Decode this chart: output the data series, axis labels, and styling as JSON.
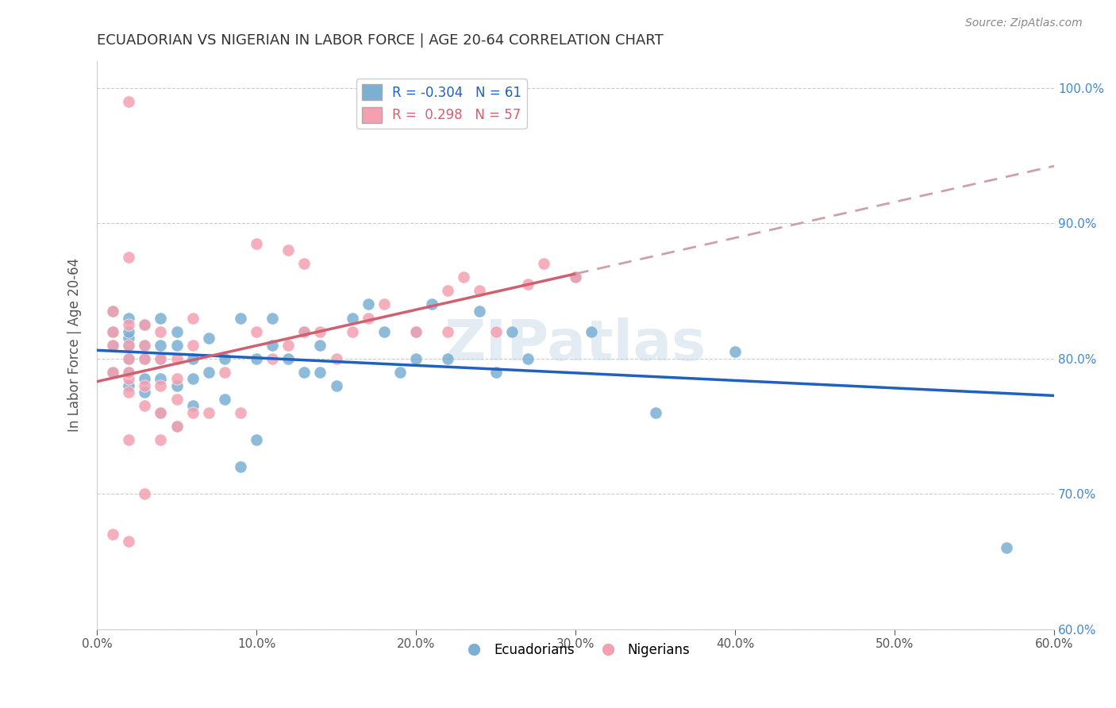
{
  "title": "ECUADORIAN VS NIGERIAN IN LABOR FORCE | AGE 20-64 CORRELATION CHART",
  "source": "Source: ZipAtlas.com",
  "xlabel_bottom": "",
  "ylabel": "In Labor Force | Age 20-64",
  "xlim": [
    0.0,
    0.6
  ],
  "ylim": [
    0.6,
    1.02
  ],
  "xticks": [
    0.0,
    0.1,
    0.2,
    0.3,
    0.4,
    0.5,
    0.6
  ],
  "yticks": [
    0.6,
    0.7,
    0.8,
    0.9,
    1.0
  ],
  "ytick_labels": [
    "60.0%",
    "70.0%",
    "80.0%",
    "90.0%",
    "100.0%"
  ],
  "xtick_labels": [
    "0.0%",
    "10.0%",
    "20.0%",
    "30.0%",
    "40.0%",
    "50.0%",
    "60.0%"
  ],
  "legend_entries": [
    {
      "label": "R = -0.304   N = 61",
      "color": "#7bafd4"
    },
    {
      "label": "R =  0.298   N = 57",
      "color": "#f4a0b0"
    }
  ],
  "ecuadorian_color": "#7bafd4",
  "nigerian_color": "#f4a0b0",
  "trend_blue_color": "#2060c0",
  "trend_pink_color": "#d06070",
  "trend_pink_dash_color": "#d0a0a8",
  "background_color": "#ffffff",
  "watermark": "ZIPatlas",
  "watermark_color": "#c8d8e8",
  "R_ecu": -0.304,
  "N_ecu": 61,
  "R_nig": 0.298,
  "N_nig": 57,
  "ecuadorian_x": [
    0.01,
    0.01,
    0.01,
    0.01,
    0.02,
    0.02,
    0.02,
    0.02,
    0.02,
    0.02,
    0.02,
    0.03,
    0.03,
    0.03,
    0.03,
    0.03,
    0.04,
    0.04,
    0.04,
    0.04,
    0.04,
    0.05,
    0.05,
    0.05,
    0.05,
    0.06,
    0.06,
    0.06,
    0.07,
    0.07,
    0.08,
    0.08,
    0.09,
    0.09,
    0.1,
    0.1,
    0.11,
    0.11,
    0.12,
    0.13,
    0.13,
    0.14,
    0.14,
    0.15,
    0.16,
    0.17,
    0.18,
    0.19,
    0.2,
    0.2,
    0.21,
    0.22,
    0.24,
    0.25,
    0.26,
    0.27,
    0.3,
    0.31,
    0.35,
    0.4,
    0.57
  ],
  "ecuadorian_y": [
    0.79,
    0.81,
    0.82,
    0.835,
    0.78,
    0.79,
    0.8,
    0.81,
    0.815,
    0.82,
    0.83,
    0.775,
    0.785,
    0.8,
    0.81,
    0.825,
    0.76,
    0.785,
    0.8,
    0.81,
    0.83,
    0.75,
    0.78,
    0.81,
    0.82,
    0.765,
    0.785,
    0.8,
    0.79,
    0.815,
    0.77,
    0.8,
    0.72,
    0.83,
    0.74,
    0.8,
    0.81,
    0.83,
    0.8,
    0.79,
    0.82,
    0.79,
    0.81,
    0.78,
    0.83,
    0.84,
    0.82,
    0.79,
    0.8,
    0.82,
    0.84,
    0.8,
    0.835,
    0.79,
    0.82,
    0.8,
    0.86,
    0.82,
    0.76,
    0.805,
    0.66
  ],
  "nigerian_x": [
    0.01,
    0.01,
    0.01,
    0.01,
    0.02,
    0.02,
    0.02,
    0.02,
    0.02,
    0.02,
    0.02,
    0.03,
    0.03,
    0.03,
    0.03,
    0.03,
    0.04,
    0.04,
    0.04,
    0.04,
    0.05,
    0.05,
    0.05,
    0.06,
    0.06,
    0.07,
    0.08,
    0.09,
    0.1,
    0.11,
    0.12,
    0.13,
    0.14,
    0.15,
    0.16,
    0.17,
    0.18,
    0.2,
    0.22,
    0.23,
    0.24,
    0.25,
    0.27,
    0.28,
    0.3,
    0.01,
    0.02,
    0.03,
    0.04,
    0.05,
    0.06,
    0.22,
    0.1,
    0.12,
    0.13,
    0.02,
    0.02
  ],
  "nigerian_y": [
    0.79,
    0.81,
    0.82,
    0.835,
    0.74,
    0.775,
    0.785,
    0.79,
    0.8,
    0.81,
    0.825,
    0.765,
    0.78,
    0.8,
    0.81,
    0.825,
    0.76,
    0.78,
    0.8,
    0.82,
    0.77,
    0.785,
    0.8,
    0.76,
    0.81,
    0.76,
    0.79,
    0.76,
    0.82,
    0.8,
    0.81,
    0.82,
    0.82,
    0.8,
    0.82,
    0.83,
    0.84,
    0.82,
    0.85,
    0.86,
    0.85,
    0.82,
    0.855,
    0.87,
    0.86,
    0.67,
    0.665,
    0.7,
    0.74,
    0.75,
    0.83,
    0.82,
    0.885,
    0.88,
    0.87,
    0.99,
    0.875
  ]
}
